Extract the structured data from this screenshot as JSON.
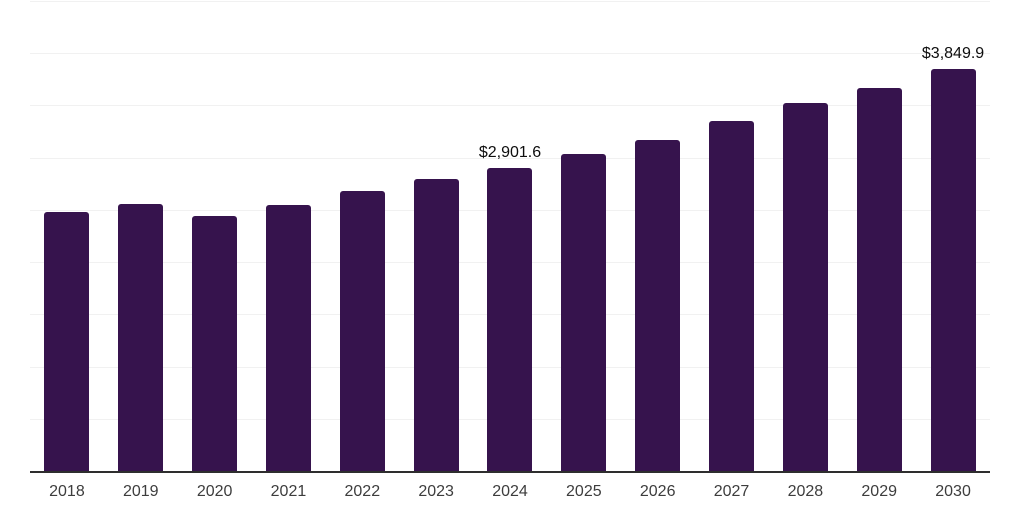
{
  "chart_data": {
    "type": "bar",
    "categories": [
      "2018",
      "2019",
      "2020",
      "2021",
      "2022",
      "2023",
      "2024",
      "2025",
      "2026",
      "2027",
      "2028",
      "2029",
      "2030"
    ],
    "values": [
      2480,
      2560,
      2440,
      2545,
      2685,
      2800,
      2901.6,
      3040,
      3170,
      3350,
      3525,
      3670,
      3849.9
    ],
    "data_labels": [
      "",
      "",
      "",
      "",
      "",
      "",
      "$2,901.6",
      "",
      "",
      "",
      "",
      "",
      "$3,849.9"
    ],
    "title": "",
    "xlabel": "",
    "ylabel": "",
    "ylim": [
      0,
      4500
    ],
    "gridline_step": 500,
    "grid": true,
    "legend_position": "none",
    "bar_color": "#36134d",
    "grid_color": "#f1f1f1",
    "axis_color": "#2e2e2e",
    "value_label_color": "#0d0d0d",
    "tick_label_color": "#3d3d3d",
    "background_color": "#ffffff"
  }
}
